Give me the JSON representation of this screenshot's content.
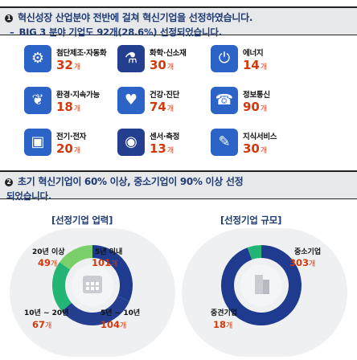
{
  "section1": {
    "bullet": "❶",
    "title": "혁신성장 산업분야 전반에 걸쳐 혁신기업을 선정하였습니다.",
    "dash": "–",
    "subtitle": "BIG 3 분야 기업도 92개(28.6%) 선정되었습니다."
  },
  "categories": [
    {
      "label": "첨단제조·자동화",
      "value": "32",
      "unit": "개",
      "icon": "robot-arm-icon",
      "color": "#2b63c6"
    },
    {
      "label": "화학·신소재",
      "value": "30",
      "unit": "개",
      "icon": "flask-icon",
      "color": "#243f8f"
    },
    {
      "label": "에너지",
      "value": "14",
      "unit": "개",
      "icon": "power-icon",
      "color": "#2b63c6"
    },
    {
      "label": "환경·지속가능",
      "value": "18",
      "unit": "개",
      "icon": "leaf-icon",
      "color": "#2b63c6"
    },
    {
      "label": "건강·진단",
      "value": "74",
      "unit": "개",
      "icon": "heart-pulse-icon",
      "color": "#2b63c6"
    },
    {
      "label": "정보통신",
      "value": "90",
      "unit": "개",
      "icon": "phone-icon",
      "color": "#2b63c6"
    },
    {
      "label": "전기·전자",
      "value": "20",
      "unit": "개",
      "icon": "chip-icon",
      "color": "#2b63c6"
    },
    {
      "label": "센서·측정",
      "value": "13",
      "unit": "개",
      "icon": "sensor-icon",
      "color": "#243f8f"
    },
    {
      "label": "지식서비스",
      "value": "30",
      "unit": "개",
      "icon": "knowledge-icon",
      "color": "#2b63c6"
    }
  ],
  "section2": {
    "bullet": "❷",
    "title_line1": "초기 혁신기업이 60% 이상, 중소기업이 90% 이상 선정",
    "title_line2": "되었습니다."
  },
  "panels": {
    "age": {
      "title": "[선정기업 업력]",
      "center_icon": "calendar-icon",
      "segments": [
        {
          "label": "5년 이내",
          "value": "101",
          "unit": "개",
          "count": 101,
          "color": "#1f3b8f"
        },
        {
          "label": "5년 ~ 10년",
          "value": "104",
          "unit": "개",
          "count": 104,
          "color": "#243f8f"
        },
        {
          "label": "10년 ~ 20년",
          "value": "67",
          "unit": "개",
          "count": 67,
          "color": "#22b573"
        },
        {
          "label": "20년 이상",
          "value": "49",
          "unit": "개",
          "count": 49,
          "color": "#7bcf6a"
        }
      ]
    },
    "size": {
      "title": "[선정기업 규모]",
      "center_icon": "building-icon",
      "segments": [
        {
          "label": "중소기업",
          "value": "303",
          "unit": "개",
          "count": 303,
          "color": "#1f3b8f"
        },
        {
          "label": "중견기업",
          "value": "18",
          "unit": "개",
          "count": 18,
          "color": "#22b573"
        }
      ]
    }
  }
}
